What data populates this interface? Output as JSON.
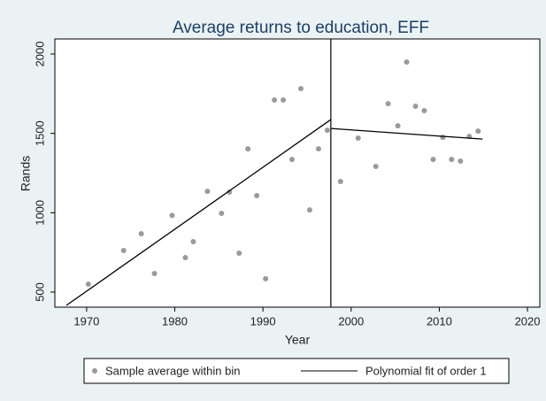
{
  "chart_data": {
    "type": "scatter",
    "title": "Average returns to education, EFF",
    "x_label": "Year",
    "y_label": "Rands",
    "xlim": [
      1966.4,
      2021.4
    ],
    "ylim": [
      405,
      2095
    ],
    "xticks": [
      1970,
      1980,
      1990,
      2000,
      2010,
      2020
    ],
    "yticks": [
      500,
      1000,
      1500,
      2000
    ],
    "cutoff": 1997.7,
    "series": [
      {
        "name": "Sample average within bin",
        "color": "#9a9a9a",
        "x": [
          1970.2,
          1974.2,
          1976.2,
          1977.7,
          1979.7,
          1981.2,
          1982.1,
          1983.7,
          1985.3,
          1986.2,
          1987.3,
          1988.3,
          1989.3,
          1990.3,
          1991.3,
          1992.3,
          1993.3,
          1994.3,
          1995.3,
          1996.3,
          1997.3,
          1998.8,
          2000.8,
          2002.8,
          2004.2,
          2005.3,
          2006.3,
          2007.3,
          2008.3,
          2009.3,
          2010.4,
          2011.4,
          2012.4,
          2013.4,
          2014.4
        ],
        "values": [
          550,
          762,
          868,
          617,
          983,
          717,
          818,
          1135,
          996,
          1130,
          745,
          1403,
          1108,
          584,
          1710,
          1710,
          1336,
          1782,
          1018,
          1403,
          1520,
          1197,
          1470,
          1292,
          1687,
          1548,
          1949,
          1671,
          1643,
          1336,
          1475,
          1336,
          1325,
          1481,
          1514
        ]
      }
    ],
    "fit": {
      "name": "Polynomial fit of order 1",
      "color": "#000000",
      "segments": [
        {
          "x": [
            1967.7,
            1997.7
          ],
          "values": [
            416,
            1587
          ]
        },
        {
          "x": [
            1997.7,
            2014.9
          ],
          "values": [
            1531,
            1464
          ]
        }
      ]
    }
  }
}
